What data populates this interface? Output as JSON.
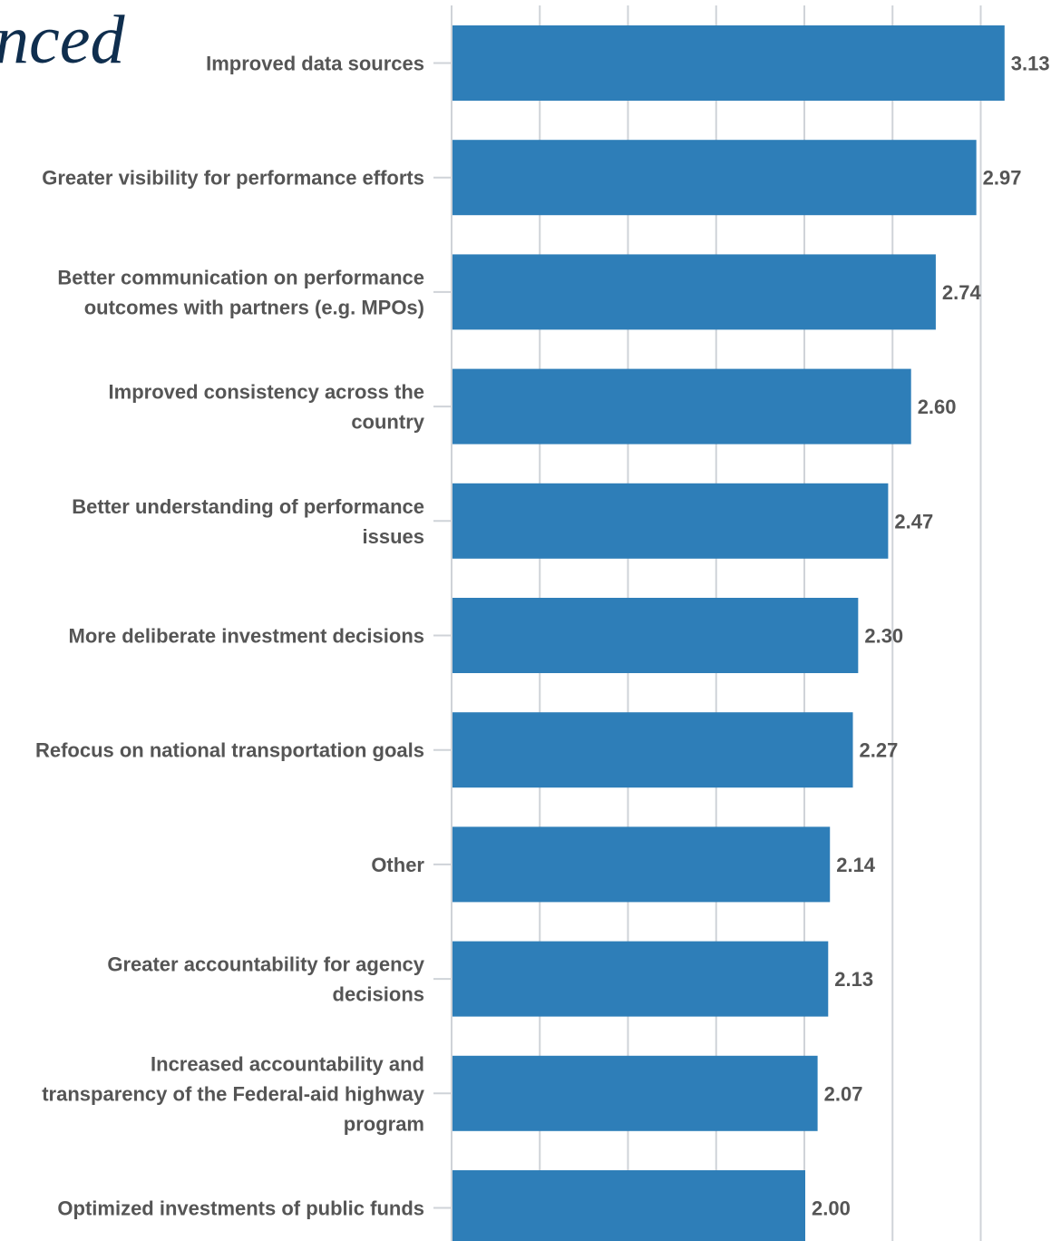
{
  "page": {
    "title": "nced"
  },
  "chart_data": {
    "type": "bar",
    "orientation": "horizontal",
    "categories": [
      "Improved data sources",
      "Greater visibility for performance efforts",
      "Better communication on performance outcomes with partners (e.g. MPOs)",
      "Improved consistency across the country",
      "Better understanding of performance issues",
      "More deliberate investment decisions",
      "Refocus on national transportation goals",
      "Other",
      "Greater accountability for agency decisions",
      "Increased accountability and transparency of the Federal-aid highway program",
      "Optimized investments of public funds"
    ],
    "category_lines": [
      [
        "Improved data sources"
      ],
      [
        "Greater visibility for performance efforts"
      ],
      [
        "Better communication on performance",
        "outcomes with partners (e.g. MPOs)"
      ],
      [
        "Improved consistency across the",
        "country"
      ],
      [
        "Better understanding of performance",
        "issues"
      ],
      [
        "More deliberate investment decisions"
      ],
      [
        "Refocus on national transportation goals"
      ],
      [
        "Other"
      ],
      [
        "Greater accountability for agency",
        "decisions"
      ],
      [
        "Increased accountability and",
        "transparency of the Federal-aid highway",
        "program"
      ],
      [
        "Optimized investments of public funds"
      ]
    ],
    "values": [
      3.13,
      2.97,
      2.74,
      2.6,
      2.47,
      2.3,
      2.27,
      2.14,
      2.13,
      2.07,
      2.0
    ],
    "value_labels": [
      "3.13",
      "2.97",
      "2.74",
      "2.60",
      "2.47",
      "2.30",
      "2.27",
      "2.14",
      "2.13",
      "2.07",
      "2.00"
    ],
    "xlim": [
      0,
      3.5
    ],
    "grid": true,
    "xlabel": "",
    "ylabel": "",
    "bar_color": "#2e7eb8",
    "grid_color": "#cfd3d8",
    "label_color": "#555555"
  }
}
